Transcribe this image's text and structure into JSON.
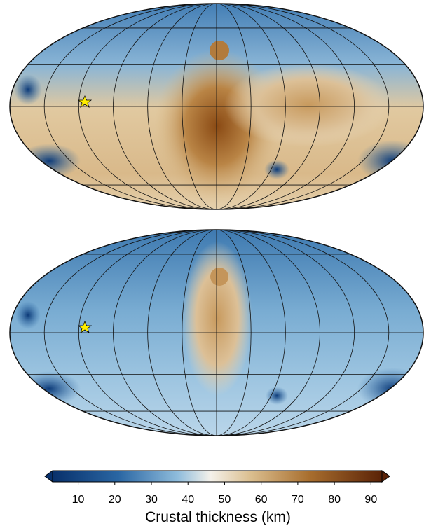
{
  "colorbar": {
    "label": "Crustal thickness (km)",
    "lim": [
      3,
      93
    ],
    "ticks": [
      10,
      20,
      30,
      40,
      50,
      60,
      70,
      80,
      90
    ]
  }
}
